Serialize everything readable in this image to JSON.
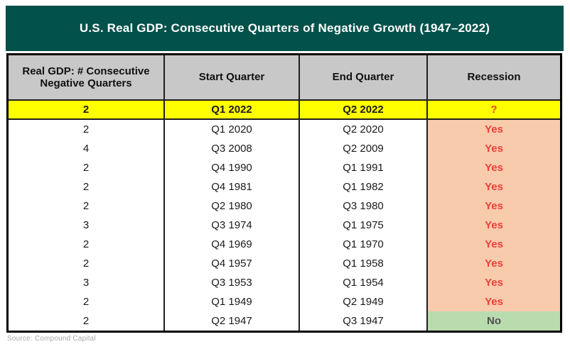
{
  "title": "U.S. Real GDP: Consecutive Quarters of Negative Growth (1947–2022)",
  "source": "Source: Compound Capital",
  "colors": {
    "title_bar_bg": "#02514a",
    "title_text": "#ffffff",
    "header_bg": "#c8c8c8",
    "highlight_row_bg": "#ffff00",
    "recession_yes_bg": "#f8cbad",
    "recession_no_bg": "#b9dcae",
    "recession_text_red": "#ef3e38",
    "recession_no_text": "#4d4d4d",
    "border": "#000000"
  },
  "table": {
    "headers": [
      "Real GDP: # Consecutive Negative Quarters",
      "Start Quarter",
      "End Quarter",
      "Recession"
    ],
    "rows": [
      {
        "quarters": "2",
        "start": "Q1 2022",
        "end": "Q2 2022",
        "recession": "?",
        "highlight": true,
        "recession_type": "q"
      },
      {
        "quarters": "2",
        "start": "Q1 2020",
        "end": "Q2 2020",
        "recession": "Yes",
        "highlight": false,
        "recession_type": "yes"
      },
      {
        "quarters": "4",
        "start": "Q3 2008",
        "end": "Q2 2009",
        "recession": "Yes",
        "highlight": false,
        "recession_type": "yes"
      },
      {
        "quarters": "2",
        "start": "Q4 1990",
        "end": "Q1 1991",
        "recession": "Yes",
        "highlight": false,
        "recession_type": "yes"
      },
      {
        "quarters": "2",
        "start": "Q4 1981",
        "end": "Q1 1982",
        "recession": "Yes",
        "highlight": false,
        "recession_type": "yes"
      },
      {
        "quarters": "2",
        "start": "Q2 1980",
        "end": "Q3 1980",
        "recession": "Yes",
        "highlight": false,
        "recession_type": "yes"
      },
      {
        "quarters": "3",
        "start": "Q3 1974",
        "end": "Q1 1975",
        "recession": "Yes",
        "highlight": false,
        "recession_type": "yes"
      },
      {
        "quarters": "2",
        "start": "Q4 1969",
        "end": "Q1 1970",
        "recession": "Yes",
        "highlight": false,
        "recession_type": "yes"
      },
      {
        "quarters": "2",
        "start": "Q4 1957",
        "end": "Q1 1958",
        "recession": "Yes",
        "highlight": false,
        "recession_type": "yes"
      },
      {
        "quarters": "3",
        "start": "Q3 1953",
        "end": "Q1 1954",
        "recession": "Yes",
        "highlight": false,
        "recession_type": "yes"
      },
      {
        "quarters": "2",
        "start": "Q1 1949",
        "end": "Q2 1949",
        "recession": "Yes",
        "highlight": false,
        "recession_type": "yes"
      },
      {
        "quarters": "2",
        "start": "Q2 1947",
        "end": "Q3 1947",
        "recession": "No",
        "highlight": false,
        "recession_type": "no"
      }
    ]
  }
}
